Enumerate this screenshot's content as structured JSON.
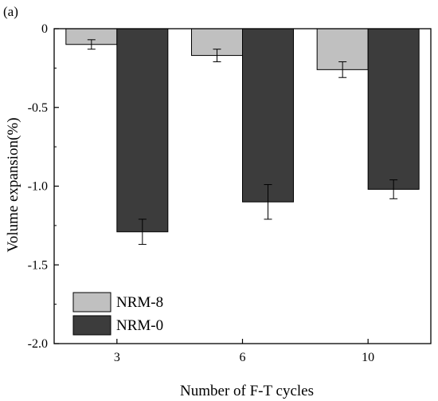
{
  "chart_data": {
    "type": "bar",
    "panel_label": "(a)",
    "title": "",
    "xlabel": "Number of F-T cycles",
    "ylabel": "Volume expansion(%)",
    "categories": [
      "3",
      "6",
      "10"
    ],
    "ylim": [
      -2.0,
      0
    ],
    "yticks": [
      0,
      -0.5,
      -1.0,
      -1.5,
      -2.0
    ],
    "ytick_labels": [
      "0",
      "-0.5",
      "-1.0",
      "-1.5",
      "-2.0"
    ],
    "grid": false,
    "legend_position": "bottom-left",
    "series": [
      {
        "name": "NRM-8",
        "color": "#c0c0c0",
        "values": [
          -0.1,
          -0.17,
          -0.26
        ],
        "errors": [
          0.03,
          0.04,
          0.05
        ]
      },
      {
        "name": "NRM-0",
        "color": "#3c3c3c",
        "values": [
          -1.29,
          -1.1,
          -1.02
        ],
        "errors": [
          0.08,
          0.11,
          0.06
        ]
      }
    ]
  }
}
